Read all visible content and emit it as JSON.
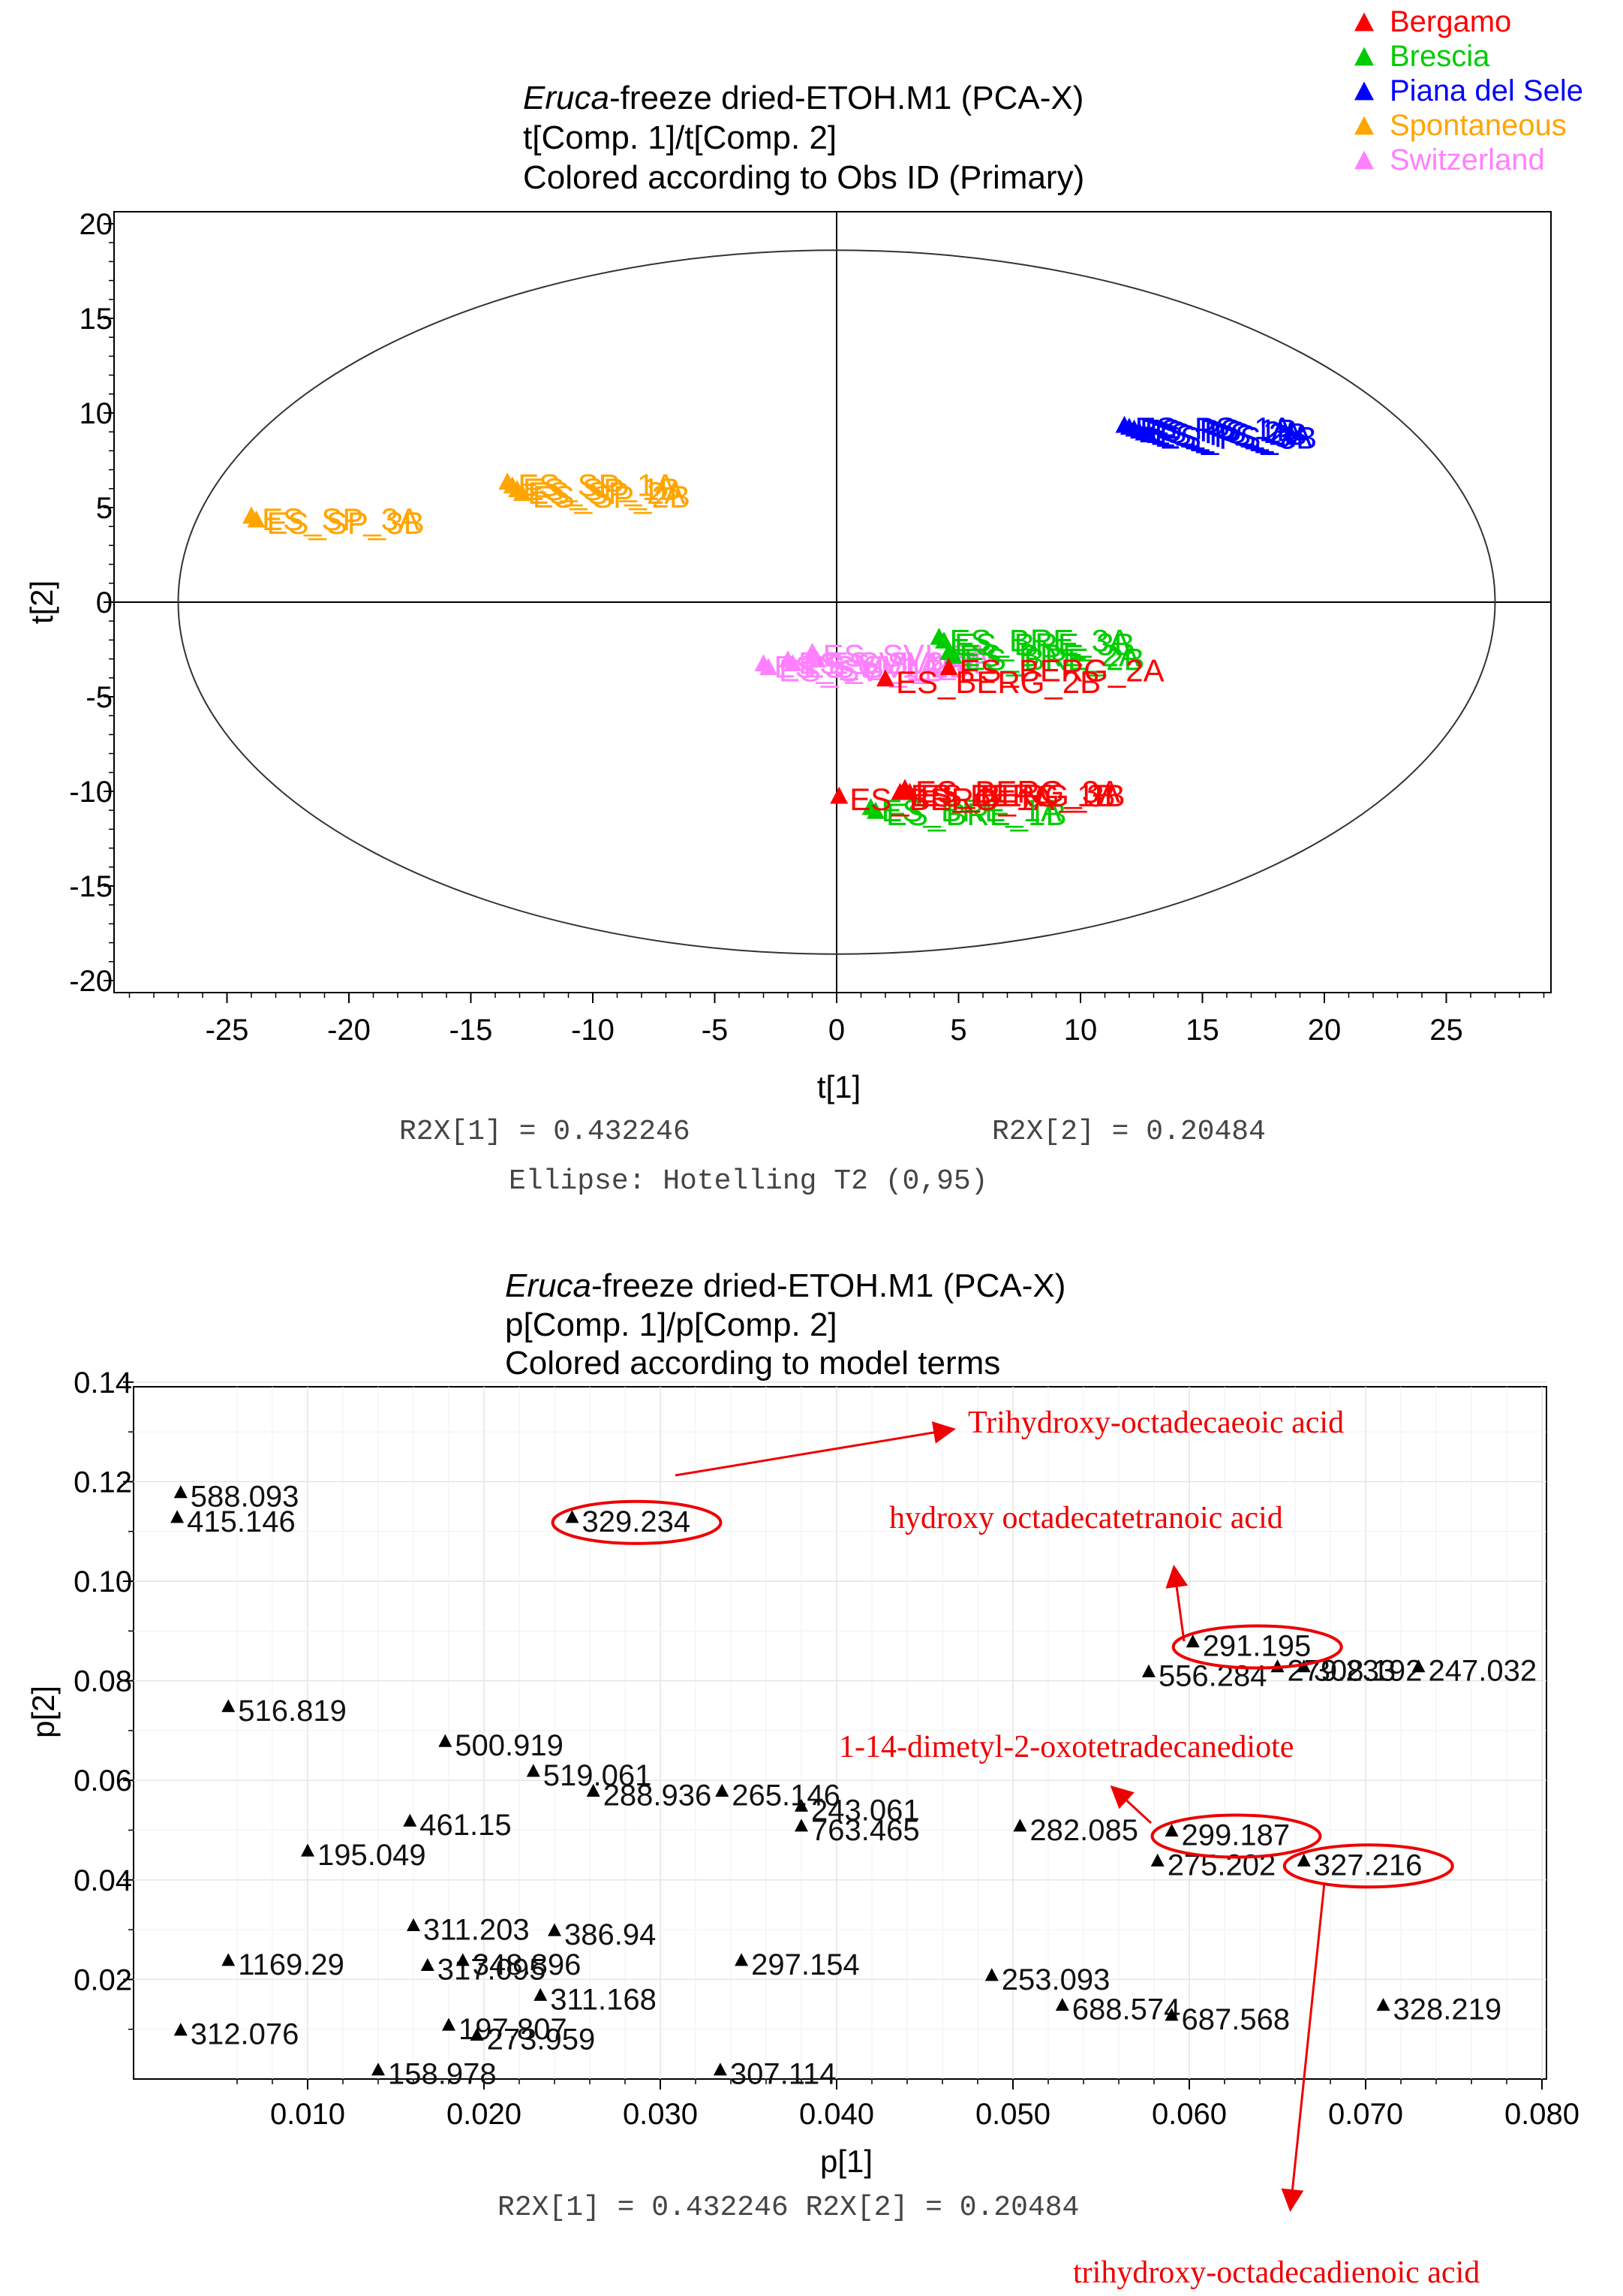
{
  "chart_data": [
    {
      "type": "scatter",
      "title_italic": "Eruca",
      "title_rest": "-freeze dried-ETOH.M1 (PCA-X)",
      "subtitle": "t[Comp. 1]/t[Comp. 2]",
      "subtitle2": "Colored according to Obs ID (Primary)",
      "xlabel": "t[1]",
      "ylabel": "t[2]",
      "xlim": [
        -30,
        30
      ],
      "ylim": [
        -20,
        20
      ],
      "xticks": [
        -25,
        -20,
        -15,
        -10,
        -5,
        0,
        5,
        10,
        15,
        20,
        25
      ],
      "yticks": [
        -20,
        -15,
        -10,
        -5,
        0,
        5,
        10,
        15,
        20
      ],
      "footer": [
        "R2X[1] = 0.432246",
        "R2X[2] = 0.20484",
        "Ellipse: Hotelling T2 (0,95)"
      ],
      "ellipse": {
        "rx": 27,
        "ry": 18.6
      },
      "legend": [
        {
          "name": "Bergamo",
          "color": "#ff0000"
        },
        {
          "name": "Brescia",
          "color": "#00cc00"
        },
        {
          "name": "Piana del Sele",
          "color": "#0000ff"
        },
        {
          "name": "Spontaneous",
          "color": "#ffa500"
        },
        {
          "name": "Switzerland",
          "color": "#ff80ff"
        }
      ],
      "series": [
        {
          "name": "Spontaneous",
          "color": "#ffa500",
          "points": [
            {
              "x": -24.0,
              "y": 4.6,
              "label": "ES_SP_3A"
            },
            {
              "x": -23.8,
              "y": 4.4,
              "label": "ES_SP_3B"
            },
            {
              "x": -13.5,
              "y": 6.4,
              "label": "ES_SP_1A"
            },
            {
              "x": -13.3,
              "y": 6.2,
              "label": "ES_SP_1B"
            },
            {
              "x": -13.1,
              "y": 6.0,
              "label": "ES_SP_2A"
            },
            {
              "x": -12.9,
              "y": 5.8,
              "label": "ES_SP_2B"
            }
          ]
        },
        {
          "name": "Piana del Sele",
          "color": "#0000ff",
          "points": [
            {
              "x": 11.8,
              "y": 9.4,
              "label": "ES_PS_1A"
            },
            {
              "x": 12.0,
              "y": 9.3,
              "label": "ES_PS_1B"
            },
            {
              "x": 12.2,
              "y": 9.2,
              "label": "ES_PS_2A"
            },
            {
              "x": 12.4,
              "y": 9.1,
              "label": "ES_PS_2B"
            },
            {
              "x": 12.6,
              "y": 9.0,
              "label": "ES_PS_3A"
            },
            {
              "x": 12.8,
              "y": 8.9,
              "label": "ES_PS_3B"
            }
          ]
        },
        {
          "name": "Switzerland",
          "color": "#ff80ff",
          "points": [
            {
              "x": -3.0,
              "y": -3.2,
              "label": "ES_SVI_1A"
            },
            {
              "x": -2.8,
              "y": -3.4,
              "label": "ES_SVI_1B"
            },
            {
              "x": -2.0,
              "y": -3.0,
              "label": "ES_SVI_2A"
            },
            {
              "x": -1.8,
              "y": -3.2,
              "label": "ES_SVI_2B"
            },
            {
              "x": -1.0,
              "y": -2.6,
              "label": "ES_SVI_3A"
            },
            {
              "x": -0.8,
              "y": -3.0,
              "label": "ES_SVI_3B"
            }
          ]
        },
        {
          "name": "Brescia",
          "color": "#00cc00",
          "points": [
            {
              "x": 4.2,
              "y": -1.8,
              "label": "ES_BRE_3A"
            },
            {
              "x": 4.4,
              "y": -2.0,
              "label": "ES_BRE_3B"
            },
            {
              "x": 4.6,
              "y": -2.6,
              "label": "ES_BRE_2A"
            },
            {
              "x": 4.8,
              "y": -2.8,
              "label": "ES_BRE_2B"
            },
            {
              "x": 1.4,
              "y": -10.8,
              "label": "ES_BRE_1A"
            },
            {
              "x": 1.6,
              "y": -11.0,
              "label": "ES_BRE_1B"
            }
          ]
        },
        {
          "name": "Bergamo",
          "color": "#ff0000",
          "points": [
            {
              "x": 2.0,
              "y": -4.0,
              "label": "ES_BERG_2B"
            },
            {
              "x": 4.6,
              "y": -3.4,
              "label": "ES_BERG_2A"
            },
            {
              "x": 0.1,
              "y": -10.2,
              "label": "ES_BERG_1A"
            },
            {
              "x": 2.6,
              "y": -10.0,
              "label": "ES_BERG_1B"
            },
            {
              "x": 2.8,
              "y": -9.8,
              "label": "ES_BERG_3A"
            },
            {
              "x": 3.0,
              "y": -10.0,
              "label": "ES_BERG_3B"
            }
          ]
        }
      ]
    },
    {
      "type": "scatter",
      "title_italic": "Eruca",
      "title_rest": "-freeze dried-ETOH.M1 (PCA-X)",
      "subtitle": "p[Comp. 1]/p[Comp. 2]",
      "subtitle2": "Colored according to model terms",
      "xlabel": "p[1]",
      "ylabel": "p[2]",
      "xlim": [
        0.0025,
        0.081
      ],
      "ylim": [
        0,
        0.141
      ],
      "xticks": [
        "0.010",
        "0.020",
        "0.030",
        "0.040",
        "0.050",
        "0.060",
        "0.070",
        "0.080"
      ],
      "yticks": [
        "0.02",
        "0.04",
        "0.06",
        "0.08",
        "0.10",
        "0.12",
        "0.14"
      ],
      "footer": "R2X[1] = 0.432246 R2X[2] = 0.20484",
      "points": [
        {
          "x": 0.0028,
          "y": 0.118,
          "label": "588.093"
        },
        {
          "x": 0.0026,
          "y": 0.113,
          "label": "415.146"
        },
        {
          "x": 0.025,
          "y": 0.113,
          "label": "329.234"
        },
        {
          "x": 0.0055,
          "y": 0.075,
          "label": "516.819"
        },
        {
          "x": 0.0178,
          "y": 0.068,
          "label": "500.919"
        },
        {
          "x": 0.0228,
          "y": 0.062,
          "label": "519.061"
        },
        {
          "x": 0.0262,
          "y": 0.058,
          "label": "288.936"
        },
        {
          "x": 0.0335,
          "y": 0.058,
          "label": "265.146"
        },
        {
          "x": 0.038,
          "y": 0.055,
          "label": "243.061"
        },
        {
          "x": 0.038,
          "y": 0.051,
          "label": "763.465"
        },
        {
          "x": 0.0158,
          "y": 0.052,
          "label": "461.15"
        },
        {
          "x": 0.01,
          "y": 0.046,
          "label": "195.049"
        },
        {
          "x": 0.0504,
          "y": 0.051,
          "label": "282.085"
        },
        {
          "x": 0.059,
          "y": 0.05,
          "label": "299.187"
        },
        {
          "x": 0.0582,
          "y": 0.044,
          "label": "275.202"
        },
        {
          "x": 0.0665,
          "y": 0.044,
          "label": "327.216"
        },
        {
          "x": 0.0602,
          "y": 0.088,
          "label": "291.195"
        },
        {
          "x": 0.0577,
          "y": 0.082,
          "label": "556.284"
        },
        {
          "x": 0.065,
          "y": 0.083,
          "label": "279.233"
        },
        {
          "x": 0.0665,
          "y": 0.083,
          "label": "308.192"
        },
        {
          "x": 0.073,
          "y": 0.083,
          "label": "247.032"
        },
        {
          "x": 0.016,
          "y": 0.031,
          "label": "311.203"
        },
        {
          "x": 0.024,
          "y": 0.03,
          "label": "386.94"
        },
        {
          "x": 0.0055,
          "y": 0.024,
          "label": "1169.29"
        },
        {
          "x": 0.0168,
          "y": 0.023,
          "label": "317.095"
        },
        {
          "x": 0.0188,
          "y": 0.024,
          "label": "348.896"
        },
        {
          "x": 0.0346,
          "y": 0.024,
          "label": "297.154"
        },
        {
          "x": 0.0232,
          "y": 0.017,
          "label": "311.168"
        },
        {
          "x": 0.0488,
          "y": 0.021,
          "label": "253.093"
        },
        {
          "x": 0.0528,
          "y": 0.015,
          "label": "688.574"
        },
        {
          "x": 0.059,
          "y": 0.013,
          "label": "687.568"
        },
        {
          "x": 0.071,
          "y": 0.015,
          "label": "328.219"
        },
        {
          "x": 0.018,
          "y": 0.011,
          "label": "197.807"
        },
        {
          "x": 0.0196,
          "y": 0.009,
          "label": "273.959"
        },
        {
          "x": 0.0028,
          "y": 0.01,
          "label": "312.076"
        },
        {
          "x": 0.014,
          "y": 0.002,
          "label": "158.978"
        },
        {
          "x": 0.0334,
          "y": 0.002,
          "label": "307.114"
        }
      ],
      "highlights": [
        "329.234",
        "291.195",
        "299.187",
        "327.216"
      ],
      "annotations": [
        {
          "label": "Trihydroxy-octadecaeoic acid",
          "target": "329.234"
        },
        {
          "label": "hydroxy octadecatetranoic acid",
          "target": "291.195"
        },
        {
          "label": "1-14-dimetyl-2-oxotetradecanediote",
          "target": "299.187"
        },
        {
          "label": "trihydroxy-octadecadienoic acid",
          "target": "327.216"
        }
      ]
    }
  ]
}
